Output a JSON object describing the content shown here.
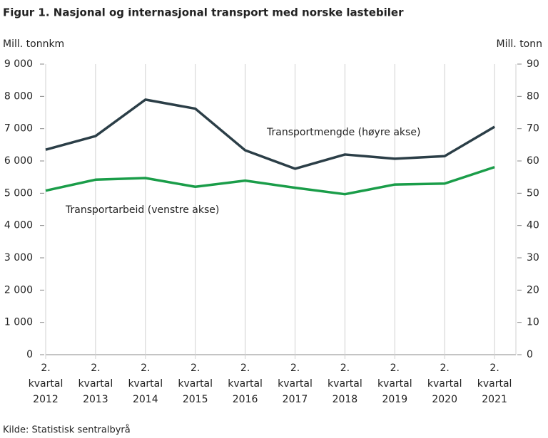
{
  "chart_data": {
    "type": "line",
    "title": "Figur 1.  Nasjonal og internasjonal transport med norske lastebiler",
    "y_label": "Mill. tonnkm",
    "y2_label": "Mill. tonn",
    "source": "Kilde: Statistisk sentralbyrå",
    "categories": [
      "2. kvartal 2012",
      "2. kvartal 2013",
      "2. kvartal 2014",
      "2. kvartal 2015",
      "2. kvartal 2016",
      "2. kvartal 2017",
      "2. kvartal 2018",
      "2. kvartal 2019",
      "2. kvartal 2020",
      "2. kvartal 2021"
    ],
    "series": [
      {
        "name": "Transportarbeid  (venstre akse)",
        "color": "#1a9d49",
        "values": [
          5080,
          5420,
          5470,
          5200,
          5390,
          5170,
          4970,
          5270,
          5300,
          5810
        ]
      },
      {
        "name": "Transportmengde  (høyre akse)",
        "color": "#2b3e47",
        "axis": "y2",
        "values": [
          63.5,
          67.7,
          79.0,
          76.2,
          63.3,
          57.6,
          62.0,
          60.7,
          61.5,
          70.6
        ]
      }
    ],
    "ylim": [
      0,
      9000
    ],
    "yticks": [
      {
        "value": 0,
        "label": "0"
      },
      {
        "value": 1000,
        "label": "1 000"
      },
      {
        "value": 2000,
        "label": "2 000"
      },
      {
        "value": 3000,
        "label": "3 000"
      },
      {
        "value": 4000,
        "label": "4 000"
      },
      {
        "value": 5000,
        "label": "5 000"
      },
      {
        "value": 6000,
        "label": "6 000"
      },
      {
        "value": 7000,
        "label": "7 000"
      },
      {
        "value": 8000,
        "label": "8 000"
      },
      {
        "value": 9000,
        "label": "9 000"
      }
    ],
    "y2lim": [
      0,
      90
    ],
    "y2ticks": [
      0,
      10,
      20,
      30,
      40,
      50,
      60,
      70,
      80,
      90
    ]
  }
}
